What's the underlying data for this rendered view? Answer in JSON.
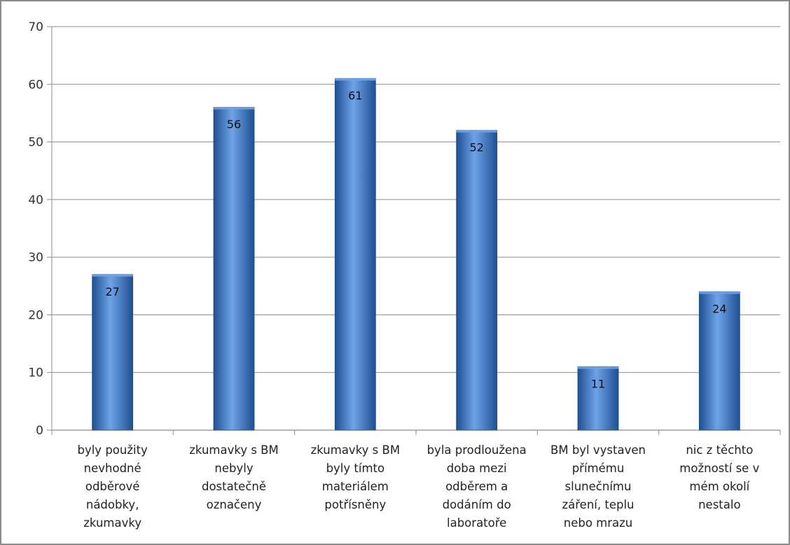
{
  "chart_data": {
    "type": "bar",
    "categories": [
      [
        "byly použity",
        "nevhodné",
        "odběrové",
        "nádobky,",
        "zkumavky"
      ],
      [
        "zkumavky s BM",
        "nebyly",
        "dostatečně",
        "označeny"
      ],
      [
        "zkumavky s BM",
        "byly tímto",
        "materiálem",
        "potřísněny"
      ],
      [
        "byla prodloužena",
        "doba mezi",
        "odběrem a",
        "dodáním do",
        "laboratoře"
      ],
      [
        "BM byl vystaven",
        "přímému",
        "slunečnímu",
        "záření, teplu",
        "nebo mrazu"
      ],
      [
        "nic z těchto",
        "možností se v",
        "mém okolí",
        "nestalo"
      ]
    ],
    "values": [
      27,
      56,
      61,
      52,
      11,
      24
    ],
    "data_labels": [
      "27",
      "56",
      "61",
      "52",
      "11",
      "24"
    ],
    "yticks": [
      "0",
      "10",
      "20",
      "30",
      "40",
      "50",
      "60",
      "70"
    ],
    "ylim": [
      0,
      70
    ],
    "grid": true,
    "legend": "none",
    "bar_color": "#3a78c9",
    "bar_color_dark": "#1f4f93",
    "bar_color_light": "#6fa3e6",
    "grid_color": "#8c8c8c"
  }
}
